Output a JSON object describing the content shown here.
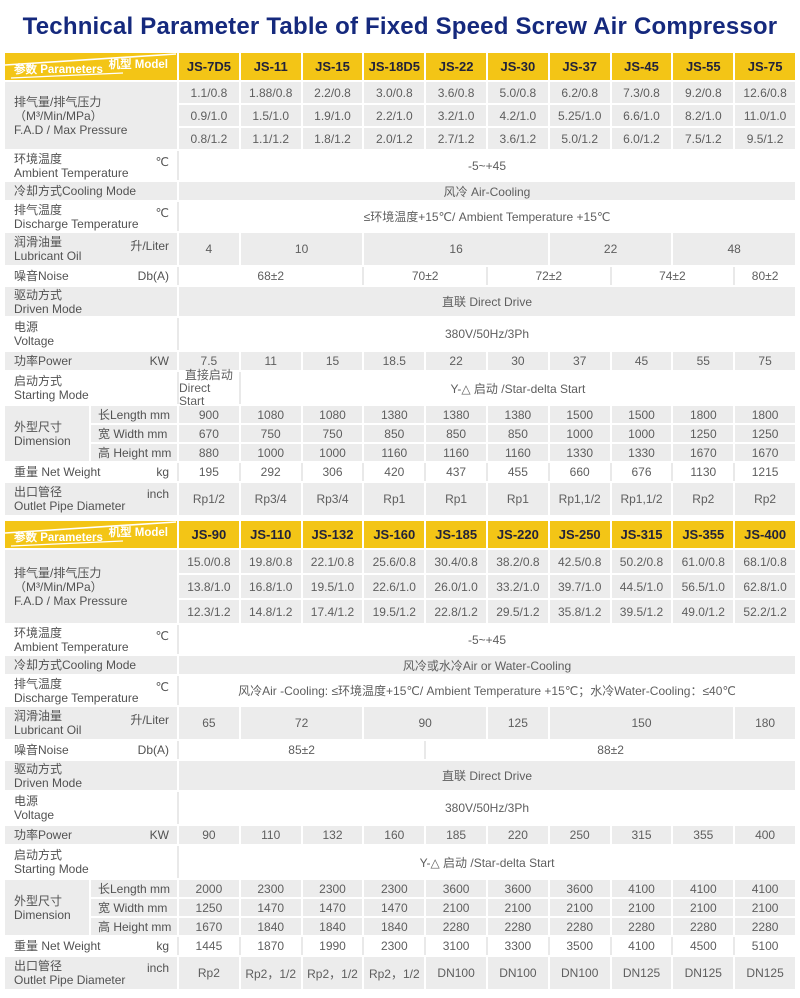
{
  "title": "Technical Parameter Table of  Fixed Speed Screw Air Compressor",
  "colors": {
    "header_yellow": "#F3C516",
    "title_blue": "#15297D",
    "shaded_cell": "#ECECEC",
    "value_text": "#5E5E5E",
    "label_text": "#525252",
    "model_text": "#22223A",
    "light_separator": "#E9E9E9"
  },
  "corner": {
    "model": "机型 Model",
    "parameters": "参数 Parameters"
  },
  "tables": [
    {
      "models": [
        "JS-7D5",
        "JS-11",
        "JS-15",
        "JS-18D5",
        "JS-22",
        "JS-30",
        "JS-37",
        "JS-45",
        "JS-55",
        "JS-75"
      ],
      "rows": [
        {
          "kind": "fad",
          "shaded": true,
          "label": [
            "排气量/排气压力（M³/Min/MPa）",
            "F.A.D / Max Pressure"
          ],
          "subrows": [
            [
              "1.1/0.8",
              "1.88/0.8",
              "2.2/0.8",
              "3.0/0.8",
              "3.6/0.8",
              "5.0/0.8",
              "6.2/0.8",
              "7.3/0.8",
              "9.2/0.8",
              "12.6/0.8"
            ],
            [
              "0.9/1.0",
              "1.5/1.0",
              "1.9/1.0",
              "2.2/1.0",
              "3.2/1.0",
              "4.2/1.0",
              "5.25/1.0",
              "6.6/1.0",
              "8.2/1.0",
              "11.0/1.0"
            ],
            [
              "0.8/1.2",
              "1.1/1.2",
              "1.8/1.2",
              "2.0/1.2",
              "2.7/1.2",
              "3.6/1.2",
              "5.0/1.2",
              "6.0/1.2",
              "7.5/1.2",
              "9.5/1.2"
            ]
          ]
        },
        {
          "kind": "tall",
          "shaded": false,
          "label": [
            "环境温度",
            "Ambient Temperature"
          ],
          "unit": "℃",
          "cells": [
            {
              "t": "-5~+45",
              "s": 10
            }
          ]
        },
        {
          "kind": "short",
          "shaded": true,
          "label": [
            "冷却方式Cooling Mode"
          ],
          "unit": "",
          "cells": [
            {
              "t": "风冷 Air-Cooling",
              "s": 10
            }
          ]
        },
        {
          "kind": "tall",
          "shaded": false,
          "label": [
            "排气温度",
            "Discharge Temperature"
          ],
          "unit": "℃",
          "cells": [
            {
              "t": "≤环境温度+15℃/ Ambient Temperature  +15℃",
              "s": 10
            }
          ]
        },
        {
          "kind": "tall2",
          "shaded": true,
          "label": [
            "润滑油量",
            "Lubricant Oil"
          ],
          "unit": "升/Liter",
          "cells": [
            {
              "t": "4",
              "s": 1
            },
            {
              "t": "10",
              "s": 2
            },
            {
              "t": "16",
              "s": 3
            },
            {
              "t": "22",
              "s": 2
            },
            {
              "t": "48",
              "s": 2
            }
          ]
        },
        {
          "kind": "short",
          "shaded": false,
          "label": [
            "噪音Noise"
          ],
          "unit": "Db(A)",
          "cells": [
            {
              "t": "68±2",
              "s": 3
            },
            {
              "t": "70±2",
              "s": 2
            },
            {
              "t": "72±2",
              "s": 2
            },
            {
              "t": "74±2",
              "s": 2
            },
            {
              "t": "80±2",
              "s": 1
            }
          ]
        },
        {
          "kind": "tall",
          "shaded": true,
          "label": [
            "驱动方式",
            "Driven Mode"
          ],
          "unit": "",
          "cells": [
            {
              "t": "直联 Direct Drive",
              "s": 10
            }
          ]
        },
        {
          "kind": "tall2",
          "shaded": false,
          "label": [
            "电源",
            "Voltage"
          ],
          "unit": "",
          "cells": [
            {
              "t": "380V/50Hz/3Ph",
              "s": 10
            }
          ]
        },
        {
          "kind": "short",
          "shaded": true,
          "label": [
            "功率Power"
          ],
          "unit": "KW",
          "cells": [
            {
              "t": "7.5"
            },
            {
              "t": "11"
            },
            {
              "t": "15"
            },
            {
              "t": "18.5"
            },
            {
              "t": "22"
            },
            {
              "t": "30"
            },
            {
              "t": "37"
            },
            {
              "t": "45"
            },
            {
              "t": "55"
            },
            {
              "t": "75"
            }
          ]
        },
        {
          "kind": "tall2",
          "shaded": false,
          "label": [
            "启动方式",
            "Starting Mode"
          ],
          "unit": "",
          "cells": [
            {
              "lines": [
                "直接启动",
                "Direct Start"
              ],
              "s": 1
            },
            {
              "t": "Y-△ 启动 /Star-delta Start",
              "s": 9
            }
          ]
        },
        {
          "kind": "dim",
          "shaded": true,
          "side": [
            "外型尺寸",
            "Dimension"
          ],
          "subrows": [
            {
              "label": "长Length mm",
              "values": [
                "900",
                "1080",
                "1080",
                "1380",
                "1380",
                "1380",
                "1500",
                "1500",
                "1800",
                "1800"
              ]
            },
            {
              "label": "宽 Width  mm",
              "values": [
                "670",
                "750",
                "750",
                "850",
                "850",
                "850",
                "1000",
                "1000",
                "1250",
                "1250"
              ]
            },
            {
              "label": "高 Height mm",
              "values": [
                "880",
                "1000",
                "1000",
                "1160",
                "1160",
                "1160",
                "1330",
                "1330",
                "1670",
                "1670"
              ]
            }
          ]
        },
        {
          "kind": "short",
          "shaded": false,
          "label": [
            "重量 Net Weight"
          ],
          "unit": "kg",
          "cells": [
            {
              "t": "195"
            },
            {
              "t": "292"
            },
            {
              "t": "306"
            },
            {
              "t": "420"
            },
            {
              "t": "437"
            },
            {
              "t": "455"
            },
            {
              "t": "660"
            },
            {
              "t": "676"
            },
            {
              "t": "1130"
            },
            {
              "t": "1215"
            }
          ]
        },
        {
          "kind": "tall2",
          "shaded": true,
          "label": [
            "出口管径",
            "Outlet Pipe Diameter"
          ],
          "unit": "inch",
          "cells": [
            {
              "t": "Rp1/2"
            },
            {
              "t": "Rp3/4"
            },
            {
              "t": "Rp3/4"
            },
            {
              "t": "Rp1"
            },
            {
              "t": "Rp1"
            },
            {
              "t": "Rp1"
            },
            {
              "t": "Rp1,1/2"
            },
            {
              "t": "Rp1,1/2"
            },
            {
              "t": "Rp2"
            },
            {
              "t": "Rp2"
            }
          ]
        }
      ]
    },
    {
      "models": [
        "JS-90",
        "JS-110",
        "JS-132",
        "JS-160",
        "JS-185",
        "JS-220",
        "JS-250",
        "JS-315",
        "JS-355",
        "JS-400"
      ],
      "rows": [
        {
          "kind": "fad",
          "shaded": true,
          "label": [
            "排气量/排气压力（M³/Min/MPa）",
            "F.A.D / Max Pressure"
          ],
          "subrows": [
            [
              "15.0/0.8",
              "19.8/0.8",
              "22.1/0.8",
              "25.6/0.8",
              "30.4/0.8",
              "38.2/0.8",
              "42.5/0.8",
              "50.2/0.8",
              "61.0/0.8",
              "68.1/0.8"
            ],
            [
              "13.8/1.0",
              "16.8/1.0",
              "19.5/1.0",
              "22.6/1.0",
              "26.0/1.0",
              "33.2/1.0",
              "39.7/1.0",
              "44.5/1.0",
              "56.5/1.0",
              "62.8/1.0"
            ],
            [
              "12.3/1.2",
              "14.8/1.2",
              "17.4/1.2",
              "19.5/1.2",
              "22.8/1.2",
              "29.5/1.2",
              "35.8/1.2",
              "39.5/1.2",
              "49.0/1.2",
              "52.2/1.2"
            ]
          ]
        },
        {
          "kind": "tall",
          "shaded": false,
          "label": [
            "环境温度",
            "Ambient Temperature"
          ],
          "unit": "℃",
          "cells": [
            {
              "t": "-5~+45",
              "s": 10
            }
          ]
        },
        {
          "kind": "short",
          "shaded": true,
          "label": [
            "冷却方式Cooling Mode"
          ],
          "unit": "",
          "cells": [
            {
              "t": "风冷或水冷Air or Water-Cooling",
              "s": 10
            }
          ]
        },
        {
          "kind": "tall",
          "shaded": false,
          "label": [
            "排气温度",
            "Discharge Temperature"
          ],
          "unit": "℃",
          "cells": [
            {
              "t": "风冷Air -Cooling: ≤环境温度+15℃/ Ambient Temperature  +15℃；水冷Water-Cooling：≤40℃",
              "s": 10
            }
          ]
        },
        {
          "kind": "tall2",
          "shaded": true,
          "label": [
            "润滑油量",
            "Lubricant Oil"
          ],
          "unit": "升/Liter",
          "cells": [
            {
              "t": "65",
              "s": 1
            },
            {
              "t": "72",
              "s": 2
            },
            {
              "t": "90",
              "s": 2
            },
            {
              "t": "125",
              "s": 1
            },
            {
              "t": "150",
              "s": 3
            },
            {
              "t": "180",
              "s": 1
            }
          ]
        },
        {
          "kind": "short",
          "shaded": false,
          "label": [
            "噪音Noise"
          ],
          "unit": "Db(A)",
          "cells": [
            {
              "t": "85±2",
              "s": 4
            },
            {
              "t": "88±2",
              "s": 6
            }
          ]
        },
        {
          "kind": "tall",
          "shaded": true,
          "label": [
            "驱动方式",
            "Driven Mode"
          ],
          "unit": "",
          "cells": [
            {
              "t": "直联 Direct Drive",
              "s": 10
            }
          ]
        },
        {
          "kind": "tall2",
          "shaded": false,
          "label": [
            "电源",
            "Voltage"
          ],
          "unit": "",
          "cells": [
            {
              "t": "380V/50Hz/3Ph",
              "s": 10
            }
          ]
        },
        {
          "kind": "short",
          "shaded": true,
          "label": [
            "功率Power"
          ],
          "unit": "KW",
          "cells": [
            {
              "t": "90"
            },
            {
              "t": "110"
            },
            {
              "t": "132"
            },
            {
              "t": "160"
            },
            {
              "t": "185"
            },
            {
              "t": "220"
            },
            {
              "t": "250"
            },
            {
              "t": "315"
            },
            {
              "t": "355"
            },
            {
              "t": "400"
            }
          ]
        },
        {
          "kind": "tall2",
          "shaded": false,
          "label": [
            "启动方式",
            "Starting Mode"
          ],
          "unit": "",
          "cells": [
            {
              "t": "Y-△ 启动 /Star-delta Start",
              "s": 10
            }
          ]
        },
        {
          "kind": "dim",
          "shaded": true,
          "side": [
            "外型尺寸",
            "Dimension"
          ],
          "subrows": [
            {
              "label": "长Length mm",
              "values": [
                "2000",
                "2300",
                "2300",
                "2300",
                "3600",
                "3600",
                "3600",
                "4100",
                "4100",
                "4100"
              ]
            },
            {
              "label": "宽 Width  mm",
              "values": [
                "1250",
                "1470",
                "1470",
                "1470",
                "2100",
                "2100",
                "2100",
                "2100",
                "2100",
                "2100"
              ]
            },
            {
              "label": "高 Height mm",
              "values": [
                "1670",
                "1840",
                "1840",
                "1840",
                "2280",
                "2280",
                "2280",
                "2280",
                "2280",
                "2280"
              ]
            }
          ]
        },
        {
          "kind": "short",
          "shaded": false,
          "label": [
            "重量 Net Weight"
          ],
          "unit": "kg",
          "cells": [
            {
              "t": "1445"
            },
            {
              "t": "1870"
            },
            {
              "t": "1990"
            },
            {
              "t": "2300"
            },
            {
              "t": "3100"
            },
            {
              "t": "3300"
            },
            {
              "t": "3500"
            },
            {
              "t": "4100"
            },
            {
              "t": "4500"
            },
            {
              "t": "5100"
            }
          ]
        },
        {
          "kind": "tall2",
          "shaded": true,
          "label": [
            "出口管径",
            "Outlet Pipe Diameter"
          ],
          "unit": "inch",
          "cells": [
            {
              "t": "Rp2"
            },
            {
              "t": "Rp2，1/2"
            },
            {
              "t": "Rp2，1/2"
            },
            {
              "t": "Rp2，1/2"
            },
            {
              "t": "DN100"
            },
            {
              "t": "DN100"
            },
            {
              "t": "DN100"
            },
            {
              "t": "DN125"
            },
            {
              "t": "DN125"
            },
            {
              "t": "DN125"
            }
          ]
        }
      ]
    }
  ]
}
